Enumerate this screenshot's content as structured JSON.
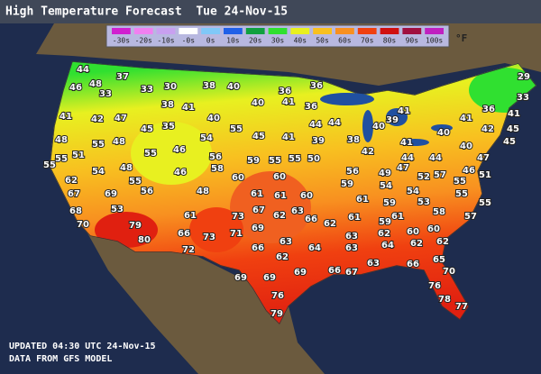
{
  "header": {
    "title": "High Temperature Forecast  Tue 24-Nov-15"
  },
  "legend": {
    "unit": "°F",
    "items": [
      {
        "label": "-30s",
        "color": "#d020d0"
      },
      {
        "label": "-20s",
        "color": "#f080f0"
      },
      {
        "label": "-10s",
        "color": "#c8a0f0"
      },
      {
        "label": "-0s",
        "color": "#ffffff"
      },
      {
        "label": "0s",
        "color": "#80c8f8"
      },
      {
        "label": "10s",
        "color": "#2060e8"
      },
      {
        "label": "20s",
        "color": "#10a040"
      },
      {
        "label": "30s",
        "color": "#30e030"
      },
      {
        "label": "40s",
        "color": "#e8f020"
      },
      {
        "label": "50s",
        "color": "#f8c020"
      },
      {
        "label": "60s",
        "color": "#f89020"
      },
      {
        "label": "70s",
        "color": "#f04010"
      },
      {
        "label": "80s",
        "color": "#d01010"
      },
      {
        "label": "90s",
        "color": "#a01040"
      },
      {
        "label": "100s",
        "color": "#c020c0"
      }
    ]
  },
  "map": {
    "temperatures": [
      44,
      37,
      29,
      46,
      48,
      33,
      33,
      30,
      38,
      40,
      36,
      36,
      33,
      38,
      41,
      40,
      41,
      36,
      36,
      41,
      41,
      41,
      42,
      47,
      40,
      39,
      41,
      45,
      35,
      55,
      44,
      44,
      40,
      42,
      45,
      48,
      55,
      48,
      54,
      45,
      41,
      39,
      38,
      42,
      41,
      40,
      40,
      45,
      55,
      55,
      51,
      55,
      46,
      56,
      59,
      55,
      55,
      50,
      44,
      44,
      47,
      54,
      48,
      46,
      58,
      60,
      60,
      56,
      49,
      47,
      46,
      62,
      55,
      59,
      54,
      52,
      57,
      51,
      55,
      67,
      69,
      56,
      48,
      61,
      61,
      60,
      61,
      59,
      54,
      53,
      55,
      55,
      68,
      53,
      61,
      73,
      67,
      62,
      63,
      66,
      62,
      61,
      61,
      58,
      57,
      70,
      79,
      59,
      80,
      66,
      73,
      71,
      69,
      66,
      63,
      64,
      63,
      63,
      62,
      64,
      60,
      62,
      60,
      62,
      72,
      62,
      69,
      69,
      69,
      66,
      67,
      63,
      66,
      65,
      70,
      76,
      76,
      78,
      77,
      79
    ]
  },
  "footer": {
    "lines": [
      "UPDATED 04:30 UTC 24-Nov-15",
      "DATA FROM GFS MODEL"
    ]
  }
}
